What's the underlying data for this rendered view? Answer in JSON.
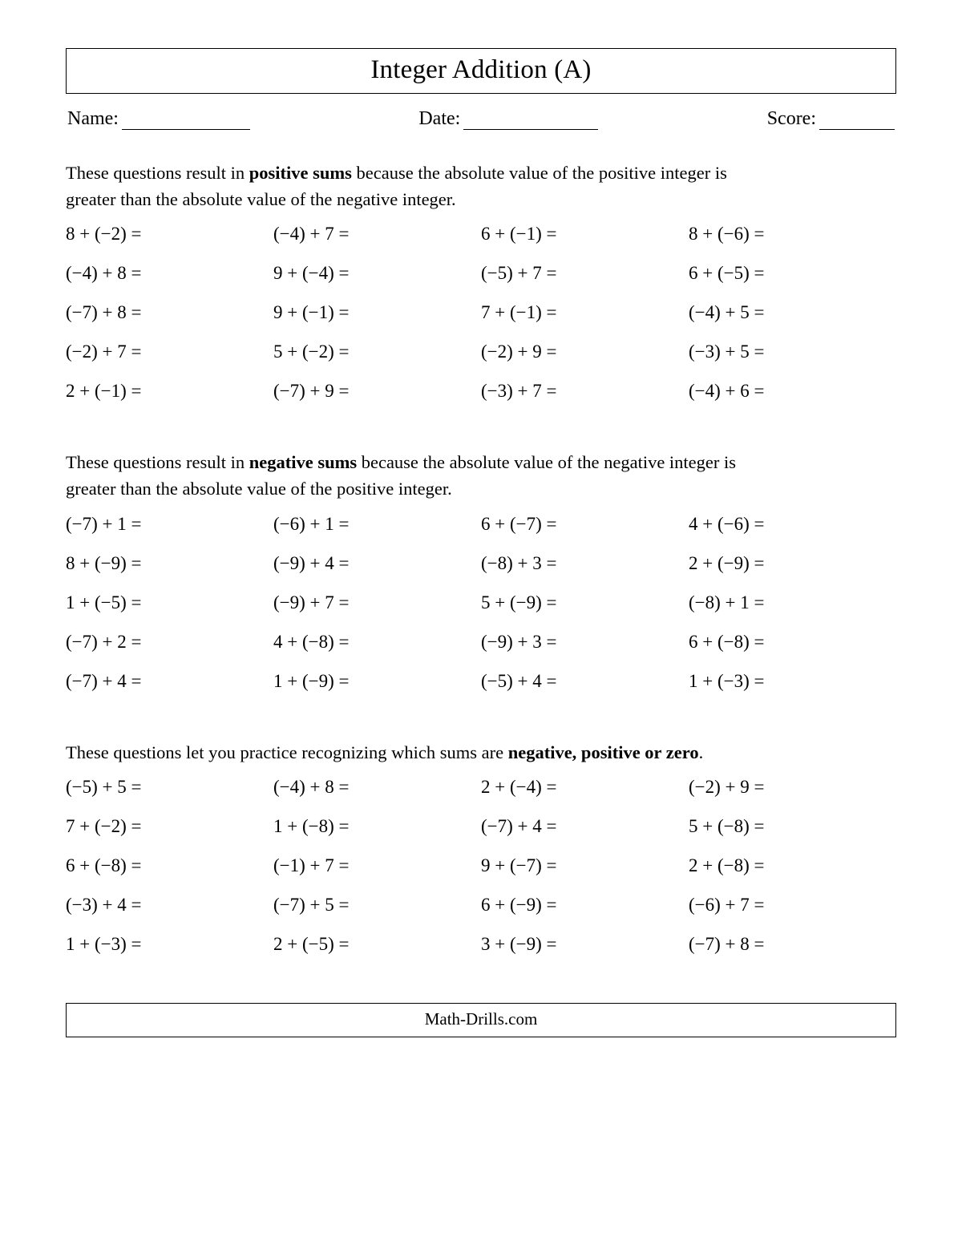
{
  "title": "Integer Addition (A)",
  "fields": {
    "name_label": "Name:",
    "date_label": "Date:",
    "score_label": "Score:",
    "name_line_width": 160,
    "date_line_width": 168,
    "score_line_width": 94
  },
  "sections": [
    {
      "desc_pre": "These questions result in ",
      "desc_bold": "positive sums",
      "desc_post": " because the absolute value of the positive integer is greater than the absolute value of the negative integer.",
      "problems": [
        {
          "a": 8,
          "b": -2
        },
        {
          "a": -4,
          "b": 7
        },
        {
          "a": 6,
          "b": -1
        },
        {
          "a": 8,
          "b": -6
        },
        {
          "a": -4,
          "b": 8
        },
        {
          "a": 9,
          "b": -4
        },
        {
          "a": -5,
          "b": 7
        },
        {
          "a": 6,
          "b": -5
        },
        {
          "a": -7,
          "b": 8
        },
        {
          "a": 9,
          "b": -1
        },
        {
          "a": 7,
          "b": -1
        },
        {
          "a": -4,
          "b": 5
        },
        {
          "a": -2,
          "b": 7
        },
        {
          "a": 5,
          "b": -2
        },
        {
          "a": -2,
          "b": 9
        },
        {
          "a": -3,
          "b": 5
        },
        {
          "a": 2,
          "b": -1
        },
        {
          "a": -7,
          "b": 9
        },
        {
          "a": -3,
          "b": 7
        },
        {
          "a": -4,
          "b": 6
        }
      ]
    },
    {
      "desc_pre": "These questions result in ",
      "desc_bold": "negative sums",
      "desc_post": " because the absolute value of the negative integer is greater than the absolute value of the positive integer.",
      "problems": [
        {
          "a": -7,
          "b": 1
        },
        {
          "a": -6,
          "b": 1
        },
        {
          "a": 6,
          "b": -7
        },
        {
          "a": 4,
          "b": -6
        },
        {
          "a": 8,
          "b": -9
        },
        {
          "a": -9,
          "b": 4
        },
        {
          "a": -8,
          "b": 3
        },
        {
          "a": 2,
          "b": -9
        },
        {
          "a": 1,
          "b": -5
        },
        {
          "a": -9,
          "b": 7
        },
        {
          "a": 5,
          "b": -9
        },
        {
          "a": -8,
          "b": 1
        },
        {
          "a": -7,
          "b": 2
        },
        {
          "a": 4,
          "b": -8
        },
        {
          "a": -9,
          "b": 3
        },
        {
          "a": 6,
          "b": -8
        },
        {
          "a": -7,
          "b": 4
        },
        {
          "a": 1,
          "b": -9
        },
        {
          "a": -5,
          "b": 4
        },
        {
          "a": 1,
          "b": -3
        }
      ]
    },
    {
      "desc_pre": "These questions let you practice recognizing which sums are ",
      "desc_bold": "negative, positive or zero",
      "desc_post": ".",
      "problems": [
        {
          "a": -5,
          "b": 5
        },
        {
          "a": -4,
          "b": 8
        },
        {
          "a": 2,
          "b": -4
        },
        {
          "a": -2,
          "b": 9
        },
        {
          "a": 7,
          "b": -2
        },
        {
          "a": 1,
          "b": -8
        },
        {
          "a": -7,
          "b": 4
        },
        {
          "a": 5,
          "b": -8
        },
        {
          "a": 6,
          "b": -8
        },
        {
          "a": -1,
          "b": 7
        },
        {
          "a": 9,
          "b": -7
        },
        {
          "a": 2,
          "b": -8
        },
        {
          "a": -3,
          "b": 4
        },
        {
          "a": -7,
          "b": 5
        },
        {
          "a": 6,
          "b": -9
        },
        {
          "a": -6,
          "b": 7
        },
        {
          "a": 1,
          "b": -3
        },
        {
          "a": 2,
          "b": -5
        },
        {
          "a": 3,
          "b": -9
        },
        {
          "a": -7,
          "b": 8
        }
      ]
    }
  ],
  "footer": "Math-Drills.com",
  "style": {
    "minus_glyph": "−",
    "plus_glyph": "+",
    "equals_glyph": "="
  }
}
